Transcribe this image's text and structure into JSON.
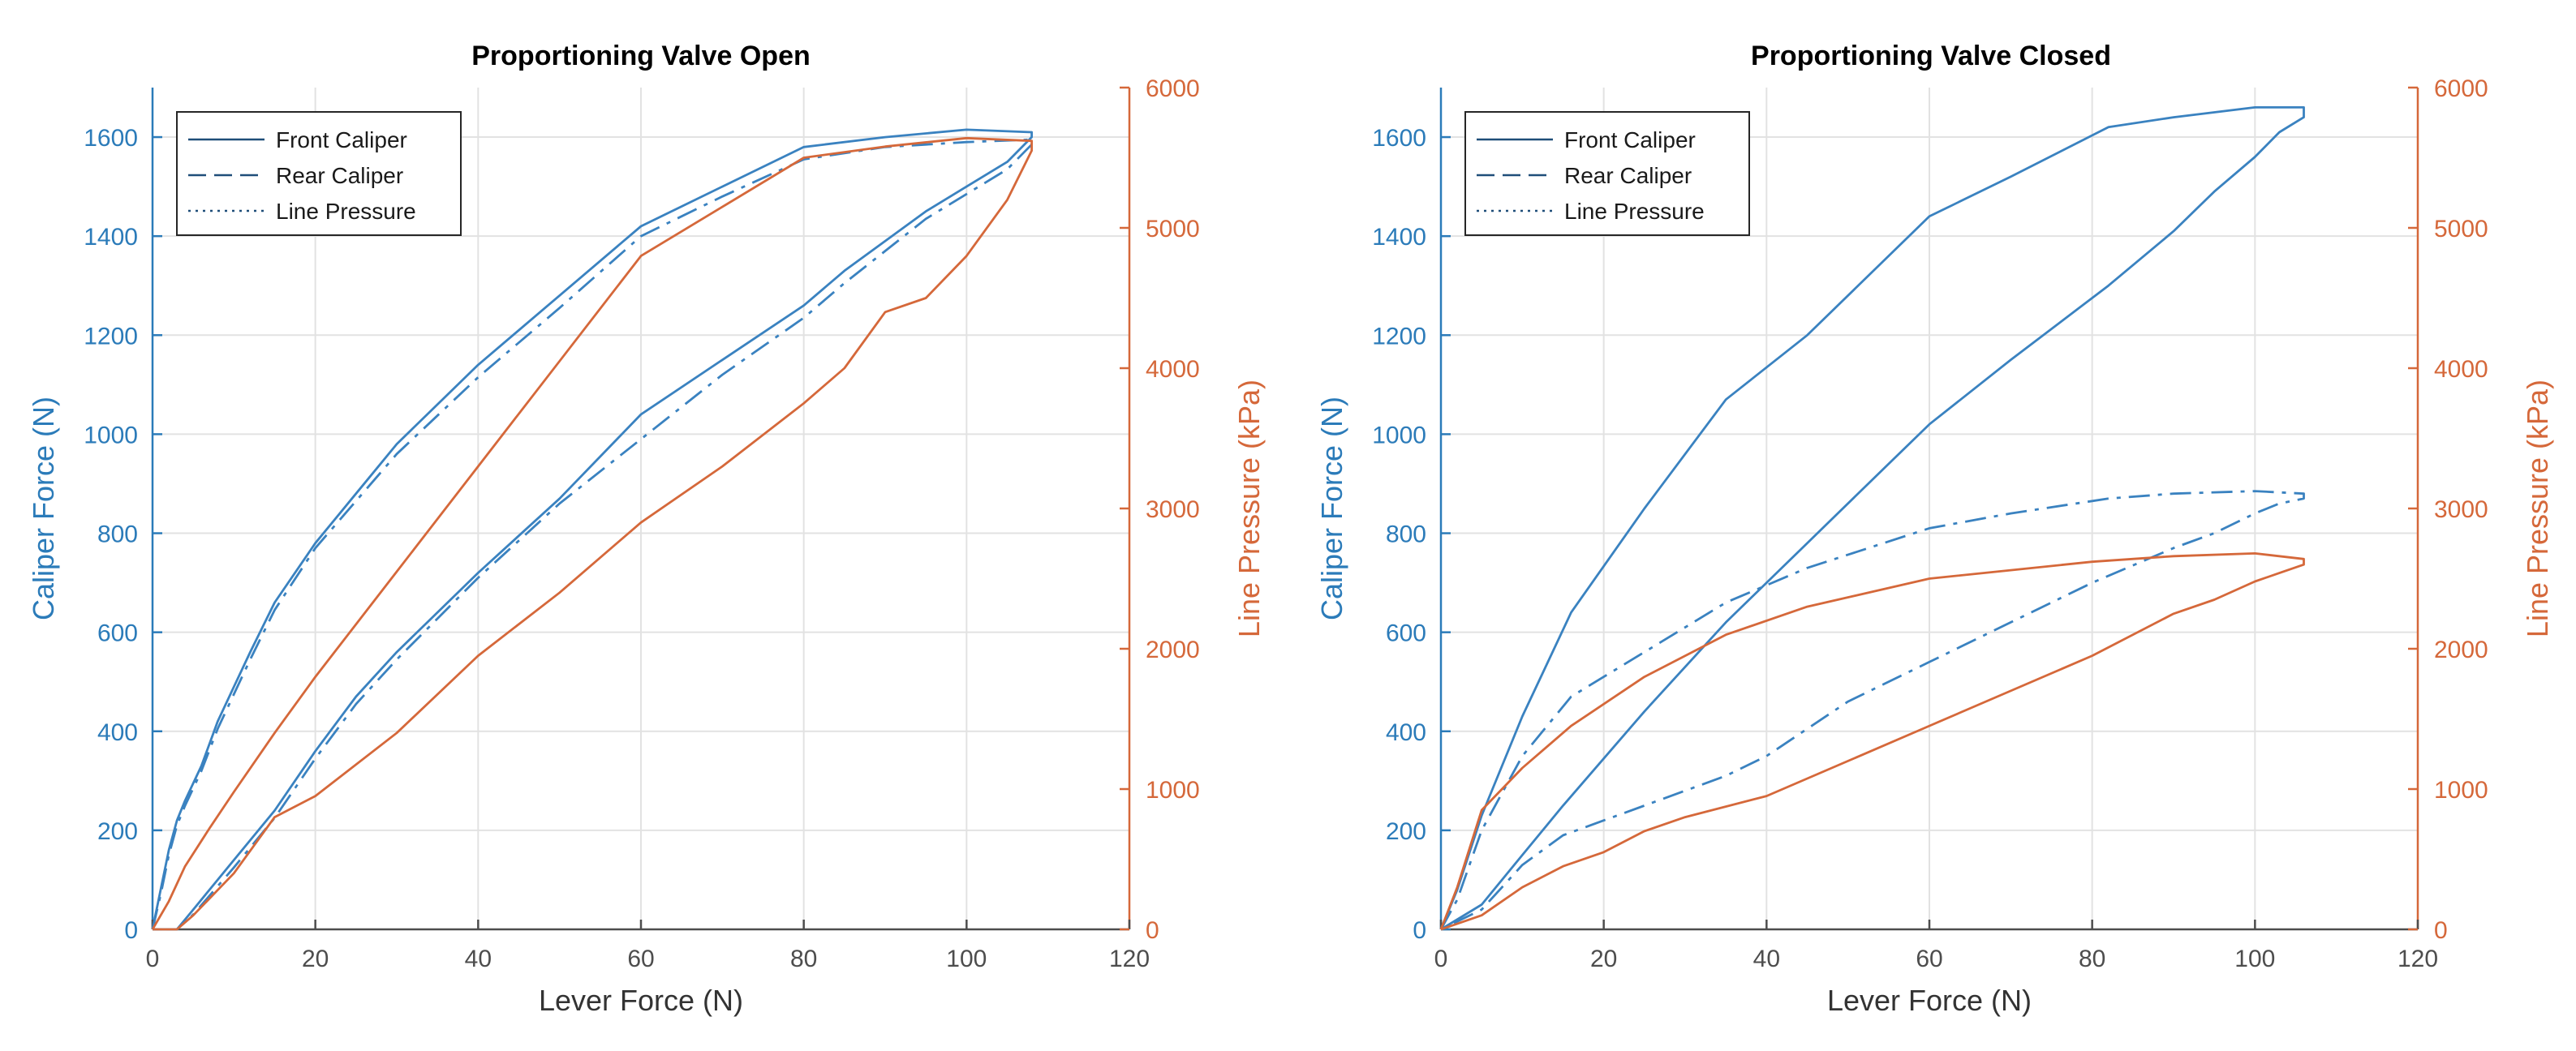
{
  "colors": {
    "caliper_axis": "#2b7bb9",
    "pressure_axis": "#d5683a",
    "front_caliper": "#3a82c0",
    "rear_caliper": "#3a82c0",
    "line_pressure": "#d5683a",
    "grid": "#e2e2e2",
    "x_axis": "#4d4d4d",
    "legend_border": "#262626",
    "title": "#000000"
  },
  "chart_data": [
    {
      "type": "line",
      "title": "Proportioning Valve Open",
      "xlabel": "Lever Force (N)",
      "ylabel_left": "Caliper Force (N)",
      "ylabel_right": "Line Pressure (kPa)",
      "xlim": [
        0,
        120
      ],
      "ylim_left": [
        0,
        1700
      ],
      "ylim_right": [
        0,
        6000
      ],
      "xticks": [
        0,
        20,
        40,
        60,
        80,
        100,
        120
      ],
      "yticks_left": [
        0,
        200,
        400,
        600,
        800,
        1000,
        1200,
        1400,
        1600
      ],
      "yticks_right": [
        0,
        1000,
        2000,
        3000,
        4000,
        5000,
        6000
      ],
      "grid": true,
      "legend_position": "top-left",
      "legend": [
        "Front Caliper",
        "Rear Caliper",
        "Line Pressure"
      ],
      "series": [
        {
          "name": "Front Caliper",
          "axis": "left",
          "style": "solid",
          "x": [
            0,
            1,
            2,
            3,
            4,
            6,
            8,
            10,
            12,
            15,
            20,
            25,
            30,
            40,
            50,
            60,
            70,
            80,
            90,
            100,
            108,
            108,
            105,
            100,
            95,
            90,
            85,
            80,
            70,
            60,
            50,
            40,
            30,
            25,
            20,
            15,
            10,
            5,
            3,
            0
          ],
          "y": [
            0,
            80,
            160,
            220,
            260,
            330,
            420,
            490,
            560,
            660,
            780,
            880,
            980,
            1140,
            1280,
            1420,
            1500,
            1580,
            1600,
            1615,
            1610,
            1600,
            1550,
            1500,
            1450,
            1390,
            1330,
            1260,
            1150,
            1040,
            870,
            720,
            560,
            470,
            360,
            240,
            140,
            40,
            0,
            0
          ]
        },
        {
          "name": "Rear Caliper",
          "axis": "left",
          "style": "dashdot",
          "x": [
            0,
            1,
            2,
            3,
            4,
            6,
            8,
            10,
            12,
            15,
            20,
            25,
            30,
            40,
            50,
            60,
            70,
            80,
            90,
            100,
            108,
            108,
            105,
            100,
            95,
            90,
            85,
            80,
            70,
            60,
            50,
            40,
            30,
            25,
            20,
            15,
            10,
            5,
            3,
            0
          ],
          "y": [
            0,
            70,
            150,
            210,
            250,
            320,
            405,
            475,
            545,
            645,
            770,
            865,
            960,
            1115,
            1255,
            1400,
            1480,
            1555,
            1580,
            1590,
            1595,
            1585,
            1535,
            1485,
            1435,
            1370,
            1305,
            1235,
            1120,
            990,
            860,
            710,
            545,
            455,
            345,
            225,
            125,
            30,
            0,
            0
          ]
        },
        {
          "name": "Line Pressure",
          "axis": "right",
          "style": "solid",
          "x": [
            0,
            2,
            4,
            7,
            10,
            15,
            20,
            30,
            40,
            50,
            60,
            70,
            80,
            90,
            100,
            108,
            108,
            105,
            100,
            95,
            90,
            85,
            80,
            70,
            60,
            50,
            40,
            30,
            20,
            15,
            10,
            5,
            3,
            0
          ],
          "y": [
            0,
            200,
            450,
            720,
            980,
            1400,
            1800,
            2550,
            3300,
            4050,
            4800,
            5150,
            5500,
            5580,
            5640,
            5620,
            5550,
            5200,
            4800,
            4500,
            4400,
            4000,
            3750,
            3300,
            2900,
            2400,
            1950,
            1400,
            950,
            800,
            400,
            100,
            0,
            0
          ]
        }
      ]
    },
    {
      "type": "line",
      "title": "Proportioning Valve Closed",
      "xlabel": "Lever Force (N)",
      "ylabel_left": "Caliper Force (N)",
      "ylabel_right": "Line Pressure (kPa)",
      "xlim": [
        0,
        120
      ],
      "ylim_left": [
        0,
        1700
      ],
      "ylim_right": [
        0,
        6000
      ],
      "xticks": [
        0,
        20,
        40,
        60,
        80,
        100,
        120
      ],
      "yticks_left": [
        0,
        200,
        400,
        600,
        800,
        1000,
        1200,
        1400,
        1600
      ],
      "yticks_right": [
        0,
        1000,
        2000,
        3000,
        4000,
        5000,
        6000
      ],
      "grid": true,
      "legend_position": "top-left",
      "legend": [
        "Front Caliper",
        "Rear Caliper",
        "Line Pressure"
      ],
      "series": [
        {
          "name": "Front Caliper",
          "axis": "left",
          "style": "solid",
          "x": [
            0,
            2,
            5,
            10,
            16,
            25,
            35,
            45,
            60,
            70,
            82,
            90,
            100,
            106,
            106,
            103,
            100,
            95,
            90,
            82,
            70,
            60,
            55,
            45,
            35,
            25,
            15,
            10,
            5,
            0
          ],
          "y": [
            0,
            80,
            230,
            430,
            640,
            850,
            1070,
            1200,
            1440,
            1520,
            1620,
            1640,
            1660,
            1660,
            1640,
            1610,
            1560,
            1490,
            1410,
            1300,
            1150,
            1020,
            940,
            780,
            620,
            440,
            250,
            150,
            50,
            0
          ]
        },
        {
          "name": "Rear Caliper",
          "axis": "left",
          "style": "dashdot",
          "x": [
            0,
            2,
            5,
            10,
            16,
            25,
            35,
            45,
            60,
            70,
            82,
            90,
            100,
            106,
            106,
            103,
            100,
            95,
            90,
            80,
            70,
            60,
            50,
            40,
            35,
            25,
            15,
            10,
            5,
            0
          ],
          "y": [
            0,
            60,
            200,
            350,
            470,
            560,
            660,
            730,
            810,
            840,
            870,
            880,
            885,
            880,
            870,
            860,
            840,
            800,
            770,
            700,
            620,
            540,
            460,
            350,
            310,
            250,
            190,
            130,
            40,
            0
          ]
        },
        {
          "name": "Line Pressure",
          "axis": "right",
          "style": "solid",
          "x": [
            0,
            2,
            5,
            10,
            16,
            25,
            35,
            45,
            60,
            70,
            80,
            90,
            100,
            106,
            106,
            103,
            100,
            95,
            90,
            80,
            70,
            60,
            50,
            40,
            30,
            25,
            20,
            15,
            10,
            5,
            0
          ],
          "y": [
            0,
            300,
            850,
            1150,
            1450,
            1800,
            2100,
            2300,
            2500,
            2560,
            2620,
            2660,
            2680,
            2640,
            2600,
            2540,
            2480,
            2350,
            2250,
            1950,
            1700,
            1450,
            1200,
            950,
            800,
            700,
            550,
            450,
            300,
            100,
            0
          ]
        }
      ]
    }
  ]
}
